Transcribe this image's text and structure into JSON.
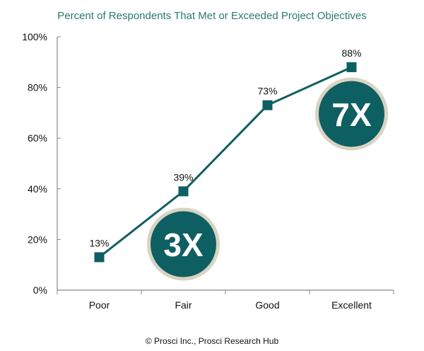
{
  "chart_data": {
    "type": "line",
    "title": "Percent of Respondents That Met or Exceeded Project Objectives",
    "categories": [
      "Poor",
      "Fair",
      "Good",
      "Excellent"
    ],
    "values": [
      13,
      39,
      73,
      88
    ],
    "data_labels": [
      "13%",
      "39%",
      "73%",
      "88%"
    ],
    "ylim": [
      0,
      100
    ],
    "yticks": [
      "0%",
      "20%",
      "40%",
      "60%",
      "80%",
      "100%"
    ],
    "grid": false,
    "annotations": [
      {
        "text": "3X",
        "category": "Fair"
      },
      {
        "text": "7X",
        "category": "Excellent"
      }
    ],
    "colors": {
      "line": "#0e5f62",
      "title": "#2a7a72",
      "badge": "#0e5f62",
      "badge_ring": "#d9d3c2"
    }
  },
  "footer": "© Prosci Inc., Prosci Research Hub"
}
